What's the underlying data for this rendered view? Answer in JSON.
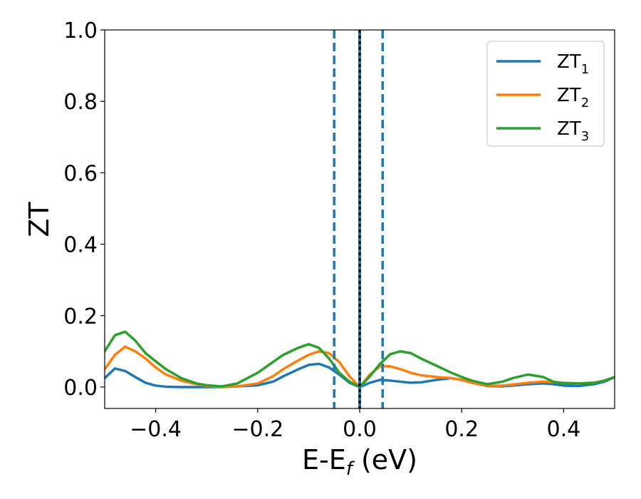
{
  "chart_data": {
    "type": "line",
    "title": "",
    "xlabel": "E-E_f (eV)",
    "ylabel": "ZT",
    "xlim": [
      -0.5,
      0.5
    ],
    "ylim": [
      -0.06,
      1.0
    ],
    "xticks": [
      -0.4,
      -0.2,
      0.0,
      0.2,
      0.4
    ],
    "xtick_labels": [
      "−0.4",
      "−0.2",
      "0.0",
      "0.2",
      "0.4"
    ],
    "yticks": [
      0.0,
      0.2,
      0.4,
      0.6,
      0.8,
      1.0
    ],
    "ytick_labels": [
      "0.0",
      "0.2",
      "0.4",
      "0.6",
      "0.8",
      "1.0"
    ],
    "grid": false,
    "legend_position": "top-right",
    "vlines": [
      {
        "x": -0.05,
        "style": "dashed",
        "color": "#1f77b4"
      },
      {
        "x": 0.0,
        "style": "solid",
        "color": "#1f77b4"
      },
      {
        "x": 0.0,
        "style": "dotted",
        "color": "#000000"
      },
      {
        "x": 0.045,
        "style": "dashed",
        "color": "#1f77b4"
      }
    ],
    "series": [
      {
        "name": "ZT1",
        "label_main": "ZT",
        "label_sub": "1",
        "color": "#1f77b4",
        "x": [
          -0.5,
          -0.48,
          -0.46,
          -0.44,
          -0.42,
          -0.4,
          -0.38,
          -0.35,
          -0.32,
          -0.3,
          -0.27,
          -0.24,
          -0.2,
          -0.17,
          -0.15,
          -0.12,
          -0.1,
          -0.08,
          -0.06,
          -0.04,
          -0.02,
          0.0,
          0.02,
          0.04,
          0.06,
          0.08,
          0.1,
          0.12,
          0.15,
          0.18,
          0.2,
          0.22,
          0.25,
          0.28,
          0.3,
          0.33,
          0.36,
          0.38,
          0.4,
          0.43,
          0.46,
          0.48,
          0.5
        ],
        "y": [
          0.025,
          0.052,
          0.045,
          0.028,
          0.012,
          0.004,
          0.001,
          0.0,
          0.0,
          0.0,
          0.0,
          0.002,
          0.005,
          0.015,
          0.03,
          0.05,
          0.062,
          0.065,
          0.055,
          0.035,
          0.012,
          0.0,
          0.012,
          0.02,
          0.018,
          0.015,
          0.012,
          0.013,
          0.02,
          0.025,
          0.02,
          0.012,
          0.003,
          0.002,
          0.004,
          0.008,
          0.01,
          0.008,
          0.004,
          0.003,
          0.008,
          0.015,
          0.028
        ]
      },
      {
        "name": "ZT2",
        "label_main": "ZT",
        "label_sub": "2",
        "color": "#ff7f0e",
        "x": [
          -0.5,
          -0.48,
          -0.46,
          -0.44,
          -0.42,
          -0.4,
          -0.38,
          -0.35,
          -0.32,
          -0.3,
          -0.27,
          -0.24,
          -0.2,
          -0.17,
          -0.15,
          -0.12,
          -0.1,
          -0.08,
          -0.06,
          -0.04,
          -0.02,
          0.0,
          0.02,
          0.04,
          0.06,
          0.08,
          0.1,
          0.12,
          0.15,
          0.18,
          0.2,
          0.22,
          0.25,
          0.28,
          0.3,
          0.33,
          0.36,
          0.38,
          0.4,
          0.43,
          0.46,
          0.48,
          0.5
        ],
        "y": [
          0.05,
          0.09,
          0.113,
          0.1,
          0.08,
          0.055,
          0.035,
          0.018,
          0.008,
          0.003,
          0.0,
          0.002,
          0.01,
          0.03,
          0.05,
          0.075,
          0.09,
          0.1,
          0.095,
          0.07,
          0.03,
          0.0,
          0.035,
          0.058,
          0.058,
          0.05,
          0.04,
          0.033,
          0.028,
          0.025,
          0.02,
          0.012,
          0.004,
          0.004,
          0.007,
          0.012,
          0.015,
          0.014,
          0.012,
          0.01,
          0.012,
          0.018,
          0.028
        ]
      },
      {
        "name": "ZT3",
        "label_main": "ZT",
        "label_sub": "3",
        "color": "#2ca02c",
        "x": [
          -0.5,
          -0.48,
          -0.46,
          -0.44,
          -0.42,
          -0.4,
          -0.38,
          -0.35,
          -0.32,
          -0.3,
          -0.27,
          -0.24,
          -0.2,
          -0.17,
          -0.15,
          -0.12,
          -0.1,
          -0.08,
          -0.06,
          -0.04,
          -0.02,
          0.0,
          0.02,
          0.04,
          0.06,
          0.08,
          0.1,
          0.12,
          0.15,
          0.18,
          0.2,
          0.22,
          0.25,
          0.28,
          0.3,
          0.33,
          0.36,
          0.38,
          0.4,
          0.43,
          0.46,
          0.48,
          0.5
        ],
        "y": [
          0.1,
          0.145,
          0.155,
          0.13,
          0.095,
          0.072,
          0.05,
          0.025,
          0.01,
          0.005,
          0.002,
          0.01,
          0.04,
          0.07,
          0.09,
          0.11,
          0.12,
          0.11,
          0.08,
          0.04,
          0.015,
          0.0,
          0.03,
          0.065,
          0.092,
          0.1,
          0.095,
          0.08,
          0.06,
          0.04,
          0.028,
          0.018,
          0.008,
          0.015,
          0.025,
          0.035,
          0.028,
          0.015,
          0.01,
          0.01,
          0.012,
          0.018,
          0.028
        ]
      }
    ]
  }
}
